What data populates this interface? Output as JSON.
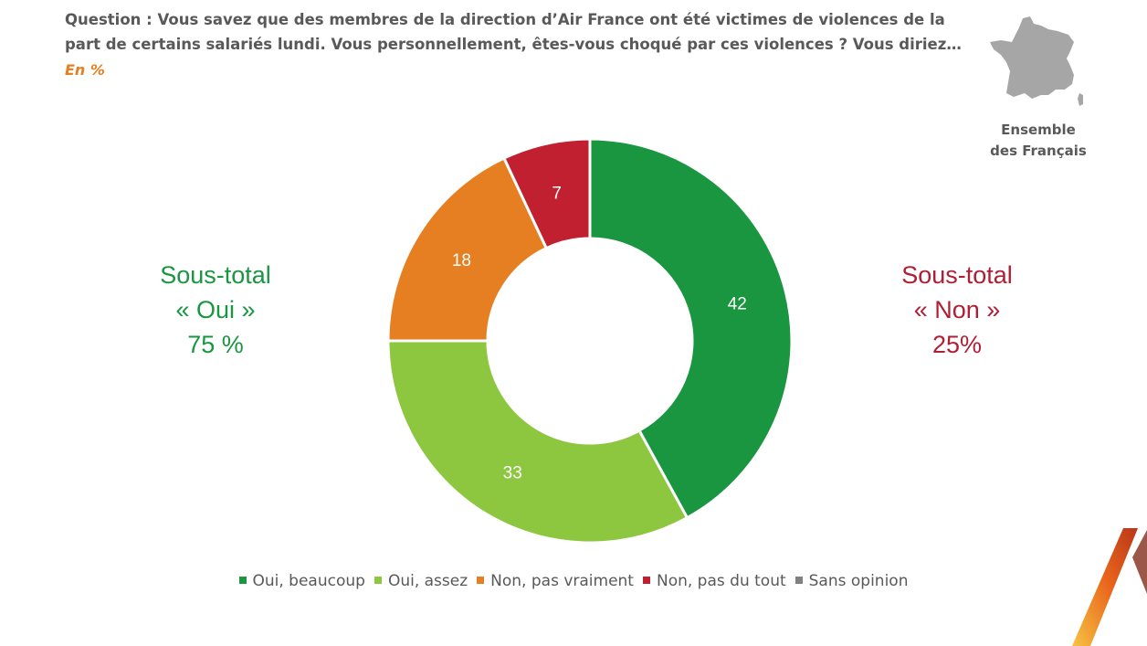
{
  "header": {
    "question": "Question : Vous savez que des membres de la direction d’Air France ont été victimes de violences de la part de certains salariés lundi. Vous personnellement, êtes-vous choqué par ces violences ? Vous diriez…",
    "unit": "En %",
    "scope_line1": "Ensemble",
    "scope_line2": "des Français"
  },
  "subtotals": {
    "oui": {
      "line1": "Sous-total",
      "line2": "« Oui »",
      "value": "75 %"
    },
    "non": {
      "line1": "Sous-total",
      "line2": "« Non »",
      "value": "25%"
    }
  },
  "chart_data": {
    "type": "pie",
    "style": "donut",
    "categories": [
      "Oui, beaucoup",
      "Oui, assez",
      "Non, pas vraiment",
      "Non, pas du tout",
      "Sans opinion"
    ],
    "values": [
      42,
      33,
      18,
      7,
      0
    ],
    "labels": [
      "42",
      "33",
      "18",
      "7",
      ""
    ],
    "colors": [
      "#1a9641",
      "#8dc63f",
      "#e57f22",
      "#c0202f",
      "#808080"
    ],
    "legend_position": "bottom"
  },
  "colors": {
    "question_text": "#595959",
    "unit_text": "#e57f22",
    "oui_subtotal": "#1a9641",
    "non_subtotal": "#b11e33",
    "map_fill": "#a6a6a6"
  }
}
